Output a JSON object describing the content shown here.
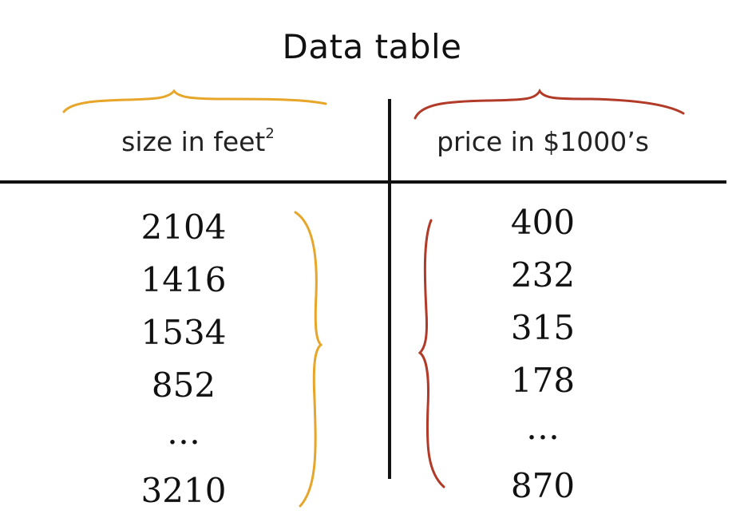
{
  "title": "Data table",
  "columns": [
    {
      "header": "size in feet",
      "header_superscript": "2",
      "color": "#e7a52a",
      "values": [
        "2104",
        "1416",
        "1534",
        "852",
        "…",
        "3210"
      ]
    },
    {
      "header": "price in $1000’s",
      "color": "#b23a28",
      "values": [
        "400",
        "232",
        "315",
        "178",
        "…",
        "870"
      ]
    }
  ],
  "colors": {
    "text": "#111111",
    "rule": "#111111",
    "brace_left": "#e7a52a",
    "brace_right": "#b23a28"
  }
}
